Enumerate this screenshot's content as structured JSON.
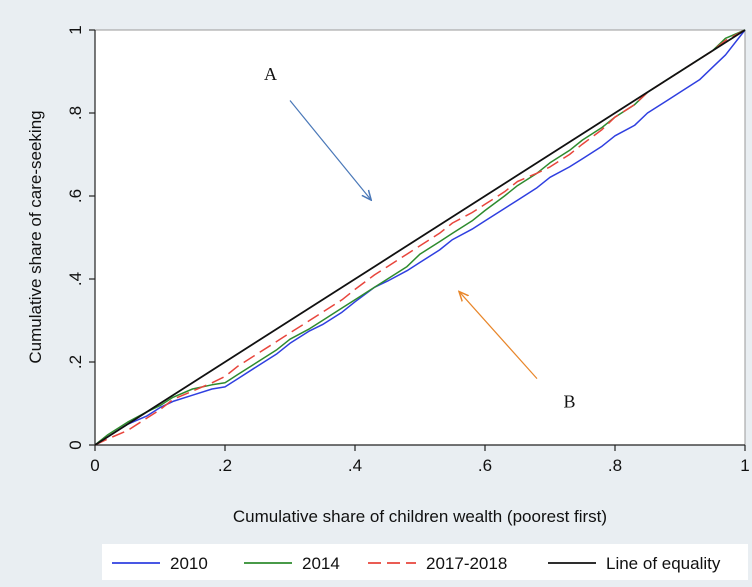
{
  "chart_data": {
    "type": "line",
    "title": "",
    "xlabel": "Cumulative share of children wealth (poorest first)",
    "ylabel": "Cumulative share of care-seeking",
    "xlim": [
      0,
      1
    ],
    "ylim": [
      0,
      1
    ],
    "xticks": [
      0,
      0.2,
      0.4,
      0.6,
      0.8,
      1
    ],
    "yticks": [
      0,
      0.2,
      0.4,
      0.6,
      0.8,
      1
    ],
    "xtick_labels": [
      "0",
      ".2",
      ".4",
      ".6",
      ".8",
      "1"
    ],
    "ytick_labels": [
      "0",
      ".2",
      ".4",
      ".6",
      ".8",
      "1"
    ],
    "grid": false,
    "legend": {
      "placement": "bottom",
      "entries": [
        "2010",
        "2014",
        "2017-2018",
        "Line of equality"
      ]
    },
    "annotations": [
      {
        "text": "A",
        "x": 0.27,
        "y": 0.88,
        "arrow_from": [
          0.3,
          0.83
        ],
        "arrow_to": [
          0.425,
          0.59
        ],
        "arrow_color": "#4a78b8"
      },
      {
        "text": "B",
        "x": 0.73,
        "y": 0.09,
        "arrow_from": [
          0.68,
          0.16
        ],
        "arrow_to": [
          0.56,
          0.37
        ],
        "arrow_color": "#e8862a"
      }
    ],
    "series": [
      {
        "name": "2010",
        "color": "#2f3fe0",
        "dash": "solid",
        "x": [
          0,
          0.02,
          0.05,
          0.08,
          0.1,
          0.12,
          0.15,
          0.18,
          0.2,
          0.22,
          0.25,
          0.28,
          0.3,
          0.33,
          0.35,
          0.38,
          0.4,
          0.43,
          0.45,
          0.48,
          0.5,
          0.53,
          0.55,
          0.58,
          0.6,
          0.63,
          0.65,
          0.68,
          0.7,
          0.73,
          0.75,
          0.78,
          0.8,
          0.83,
          0.85,
          0.88,
          0.9,
          0.93,
          0.95,
          0.97,
          1
        ],
        "y": [
          0,
          0.02,
          0.05,
          0.07,
          0.09,
          0.105,
          0.12,
          0.135,
          0.14,
          0.16,
          0.19,
          0.22,
          0.245,
          0.275,
          0.29,
          0.32,
          0.345,
          0.38,
          0.395,
          0.42,
          0.44,
          0.47,
          0.495,
          0.52,
          0.54,
          0.57,
          0.59,
          0.62,
          0.645,
          0.67,
          0.69,
          0.72,
          0.745,
          0.77,
          0.8,
          0.83,
          0.85,
          0.88,
          0.91,
          0.94,
          1
        ]
      },
      {
        "name": "2014",
        "color": "#2e8b2e",
        "dash": "solid",
        "x": [
          0,
          0.02,
          0.05,
          0.08,
          0.1,
          0.12,
          0.15,
          0.18,
          0.2,
          0.22,
          0.25,
          0.28,
          0.3,
          0.33,
          0.35,
          0.38,
          0.4,
          0.43,
          0.45,
          0.48,
          0.5,
          0.53,
          0.55,
          0.58,
          0.6,
          0.63,
          0.65,
          0.68,
          0.7,
          0.73,
          0.75,
          0.78,
          0.8,
          0.83,
          0.85,
          0.88,
          0.9,
          0.93,
          0.95,
          0.97,
          1
        ],
        "y": [
          0,
          0.025,
          0.055,
          0.08,
          0.095,
          0.115,
          0.135,
          0.145,
          0.15,
          0.17,
          0.2,
          0.23,
          0.255,
          0.28,
          0.3,
          0.33,
          0.35,
          0.38,
          0.4,
          0.43,
          0.46,
          0.49,
          0.51,
          0.54,
          0.565,
          0.6,
          0.625,
          0.655,
          0.68,
          0.71,
          0.735,
          0.765,
          0.79,
          0.82,
          0.85,
          0.88,
          0.9,
          0.93,
          0.95,
          0.98,
          1
        ]
      },
      {
        "name": "2017-2018",
        "color": "#e8453c",
        "dash": "dashed",
        "x": [
          0,
          0.02,
          0.05,
          0.08,
          0.1,
          0.12,
          0.15,
          0.18,
          0.2,
          0.22,
          0.25,
          0.28,
          0.3,
          0.33,
          0.35,
          0.38,
          0.4,
          0.43,
          0.45,
          0.48,
          0.5,
          0.53,
          0.55,
          0.58,
          0.6,
          0.63,
          0.65,
          0.68,
          0.7,
          0.73,
          0.75,
          0.78,
          0.8,
          0.83,
          0.85,
          0.88,
          0.9,
          0.93,
          0.95,
          0.97,
          1
        ],
        "y": [
          0,
          0.015,
          0.035,
          0.065,
          0.085,
          0.11,
          0.13,
          0.15,
          0.165,
          0.19,
          0.22,
          0.25,
          0.27,
          0.3,
          0.32,
          0.35,
          0.375,
          0.41,
          0.43,
          0.46,
          0.48,
          0.51,
          0.535,
          0.56,
          0.58,
          0.61,
          0.635,
          0.655,
          0.67,
          0.7,
          0.725,
          0.76,
          0.79,
          0.82,
          0.85,
          0.88,
          0.9,
          0.93,
          0.95,
          0.975,
          1
        ]
      },
      {
        "name": "Line of equality",
        "color": "#111111",
        "dash": "solid",
        "x": [
          0,
          1
        ],
        "y": [
          0,
          1
        ]
      }
    ]
  }
}
